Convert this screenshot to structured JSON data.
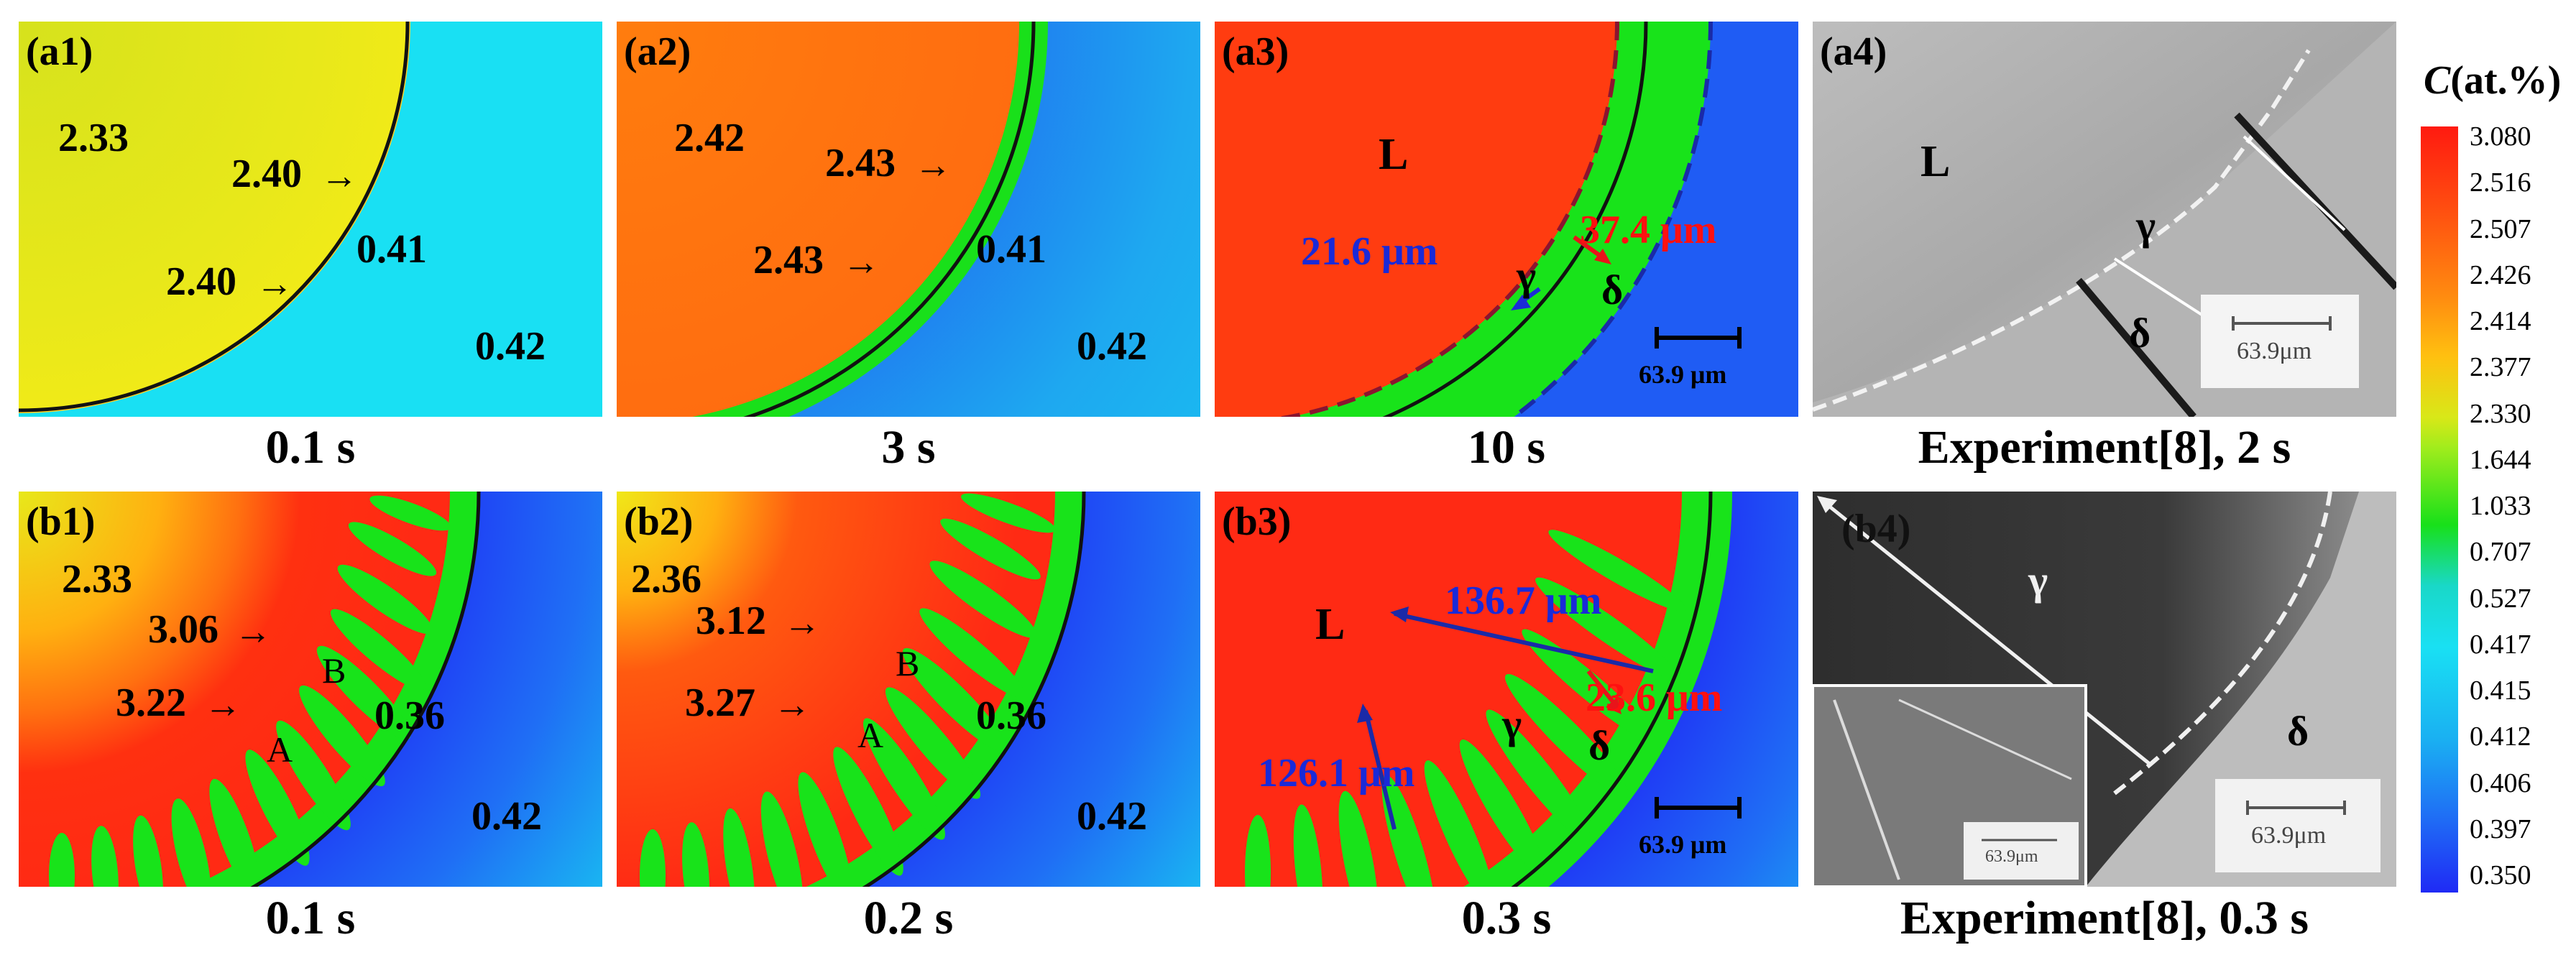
{
  "colorbar": {
    "title_symbol": "C",
    "title_unit": "(at.%)",
    "ticks": [
      "3.080",
      "2.516",
      "2.507",
      "2.426",
      "2.414",
      "2.377",
      "2.330",
      "1.644",
      "1.033",
      "0.707",
      "0.527",
      "0.417",
      "0.415",
      "0.412",
      "0.406",
      "0.397",
      "0.350"
    ]
  },
  "panels": {
    "a1": {
      "tag": "(a1)",
      "liquid": "2.33",
      "interface_1": "2.40",
      "interface_2": "2.40",
      "delta_near": "0.41",
      "delta_far": "0.42",
      "caption": "0.1 s"
    },
    "a2": {
      "tag": "(a2)",
      "liquid": "2.42",
      "interface_1": "2.43",
      "interface_2": "2.43",
      "delta_near": "0.41",
      "delta_far": "0.42",
      "caption": "3 s"
    },
    "a3": {
      "tag": "(a3)",
      "L": "L",
      "gamma": "γ",
      "delta": "δ",
      "blue_dist": "21.6 μm",
      "red_dist": "37.4 μm",
      "scale": "63.9 μm",
      "caption": "10 s"
    },
    "a4": {
      "tag": "(a4)",
      "L": "L",
      "gamma": "γ",
      "delta": "δ",
      "scale": "63.9μm",
      "caption": "Experiment[8], 2 s"
    },
    "b1": {
      "tag": "(b1)",
      "liquid": "2.33",
      "val_b": "3.06",
      "val_a": "3.22",
      "B": "B",
      "A": "A",
      "delta_near": "0.36",
      "delta_far": "0.42",
      "caption": "0.1 s"
    },
    "b2": {
      "tag": "(b2)",
      "liquid": "2.36",
      "val_b": "3.12",
      "val_a": "3.27",
      "B": "B",
      "A": "A",
      "delta_near": "0.36",
      "delta_far": "0.42",
      "caption": "0.2 s"
    },
    "b3": {
      "tag": "(b3)",
      "L": "L",
      "gamma": "γ",
      "delta": "δ",
      "dist_top": "136.7 μm",
      "dist_red": "23.6 μm",
      "dist_left": "126.1 μm",
      "scale": "63.9 μm",
      "caption": "0.3 s"
    },
    "b4": {
      "tag": "(b4)",
      "gamma": "γ",
      "delta": "δ",
      "scale_small": "63.9μm",
      "scale": "63.9μm",
      "caption": "Experiment[8], 0.3 s"
    }
  },
  "colors": {
    "red": "#ff2a14",
    "orange": "#ff7a10",
    "yellow": "#e6e61a",
    "green": "#18e618",
    "cyan": "#19e1f2",
    "blue_mid": "#2a7df5",
    "blue_deep": "#1f3df5"
  }
}
